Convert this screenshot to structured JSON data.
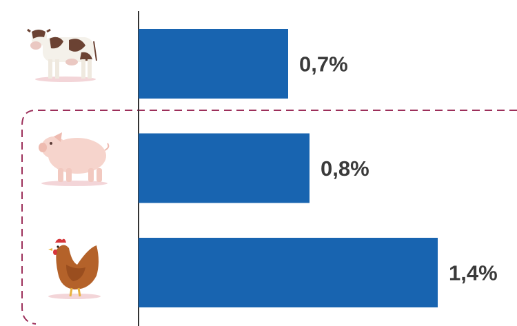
{
  "colors": {
    "bar": "#1864b0",
    "axis": "#333333",
    "highlight_border": "#9c2f5a",
    "label": "#3a3a3a"
  },
  "chart_data": {
    "type": "bar",
    "orientation": "horizontal",
    "categories": [
      "cow",
      "pig",
      "chicken"
    ],
    "category_icons": [
      "cow-icon",
      "pig-icon",
      "chicken-icon"
    ],
    "values": [
      0.7,
      0.8,
      1.4
    ],
    "value_labels": [
      "0,7%",
      "0,8%",
      "1,4%"
    ],
    "title": "",
    "xlabel": "",
    "ylabel": "",
    "xlim": [
      0,
      1.5
    ],
    "grid": false,
    "highlighted_categories": [
      "pig",
      "chicken"
    ]
  }
}
